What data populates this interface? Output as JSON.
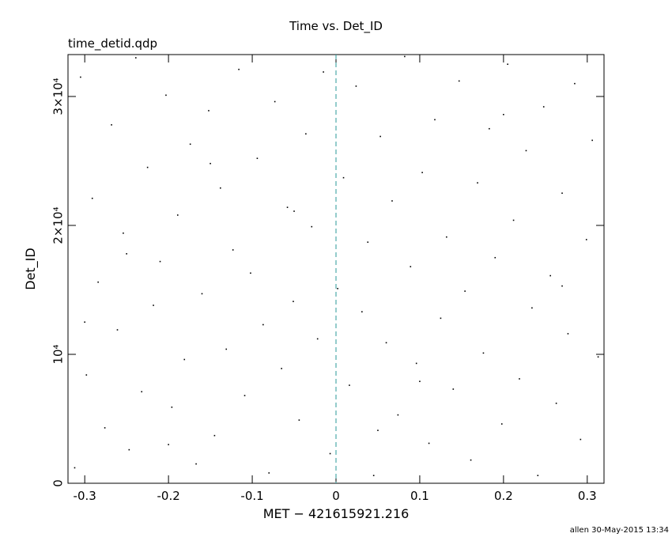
{
  "chart_data": {
    "type": "scatter",
    "title": "Time vs. Det_ID",
    "subtitle": "time_detid.qdp",
    "x_label": "MET − 421615921.216",
    "y_label": "Det_ID",
    "footer": "allen 30-May-2015 13:34",
    "xlim": [
      -0.32,
      0.32
    ],
    "ylim": [
      0,
      33250
    ],
    "xticks": [
      -0.3,
      -0.2,
      -0.1,
      0,
      0.1,
      0.2,
      0.3
    ],
    "yticks": [
      0,
      {
        "value": 10000,
        "label": "10⁴"
      },
      {
        "value": 20000,
        "label": "2×10⁴"
      },
      {
        "value": 30000,
        "label": "3×10⁴"
      }
    ],
    "vline": {
      "x": 0,
      "color": "#2a9a9a"
    },
    "series": [
      {
        "name": "Det_ID",
        "color": "#000000",
        "x": [
          -0.312,
          -0.305,
          -0.298,
          -0.291,
          -0.284,
          -0.276,
          -0.268,
          -0.261,
          -0.254,
          -0.247,
          -0.239,
          -0.232,
          -0.225,
          -0.218,
          -0.21,
          -0.203,
          -0.196,
          -0.189,
          -0.181,
          -0.174,
          -0.167,
          -0.16,
          -0.152,
          -0.145,
          -0.138,
          -0.131,
          -0.123,
          -0.116,
          -0.109,
          -0.102,
          -0.094,
          -0.087,
          -0.08,
          -0.073,
          -0.065,
          -0.058,
          -0.051,
          -0.044,
          -0.036,
          -0.029,
          -0.022,
          -0.015,
          -0.007,
          0.002,
          0.009,
          0.016,
          0.024,
          0.031,
          0.038,
          0.045,
          0.053,
          0.06,
          0.067,
          0.074,
          0.082,
          0.089,
          0.096,
          0.103,
          0.111,
          0.118,
          0.125,
          0.132,
          0.14,
          0.147,
          0.154,
          0.161,
          0.169,
          0.176,
          0.183,
          0.19,
          0.198,
          0.205,
          0.212,
          0.219,
          0.227,
          0.234,
          0.241,
          0.248,
          0.256,
          0.263,
          0.27,
          0.277,
          0.285,
          0.292,
          0.299,
          0.306,
          0.313,
          -0.3,
          -0.15,
          0.05,
          0.2,
          -0.25,
          0.1,
          -0.05,
          0.27,
          -0.2
        ],
        "y": [
          1200,
          31500,
          8400,
          22100,
          15600,
          4300,
          27800,
          11900,
          19400,
          2600,
          33000,
          7100,
          24500,
          13800,
          17200,
          30100,
          5900,
          20800,
          9600,
          26300,
          1500,
          14700,
          28900,
          3700,
          22900,
          10400,
          18100,
          32100,
          6800,
          16300,
          25200,
          12300,
          800,
          29600,
          8900,
          21400,
          14100,
          4900,
          27100,
          19900,
          11200,
          31900,
          2300,
          15100,
          23700,
          7600,
          30800,
          13300,
          18700,
          600,
          26900,
          10900,
          21900,
          5300,
          33100,
          16800,
          9300,
          24100,
          3100,
          28200,
          12800,
          19100,
          7300,
          31200,
          14900,
          1800,
          23300,
          10100,
          27500,
          17500,
          4600,
          32500,
          20400,
          8100,
          25800,
          13600,
          600,
          29200,
          16100,
          6200,
          22500,
          11600,
          31000,
          3400,
          18900,
          26600,
          9800,
          12500,
          24800,
          4100,
          28600,
          17800,
          7900,
          21100,
          15300,
          3000
        ],
        "marker_size": 1.6
      }
    ]
  }
}
